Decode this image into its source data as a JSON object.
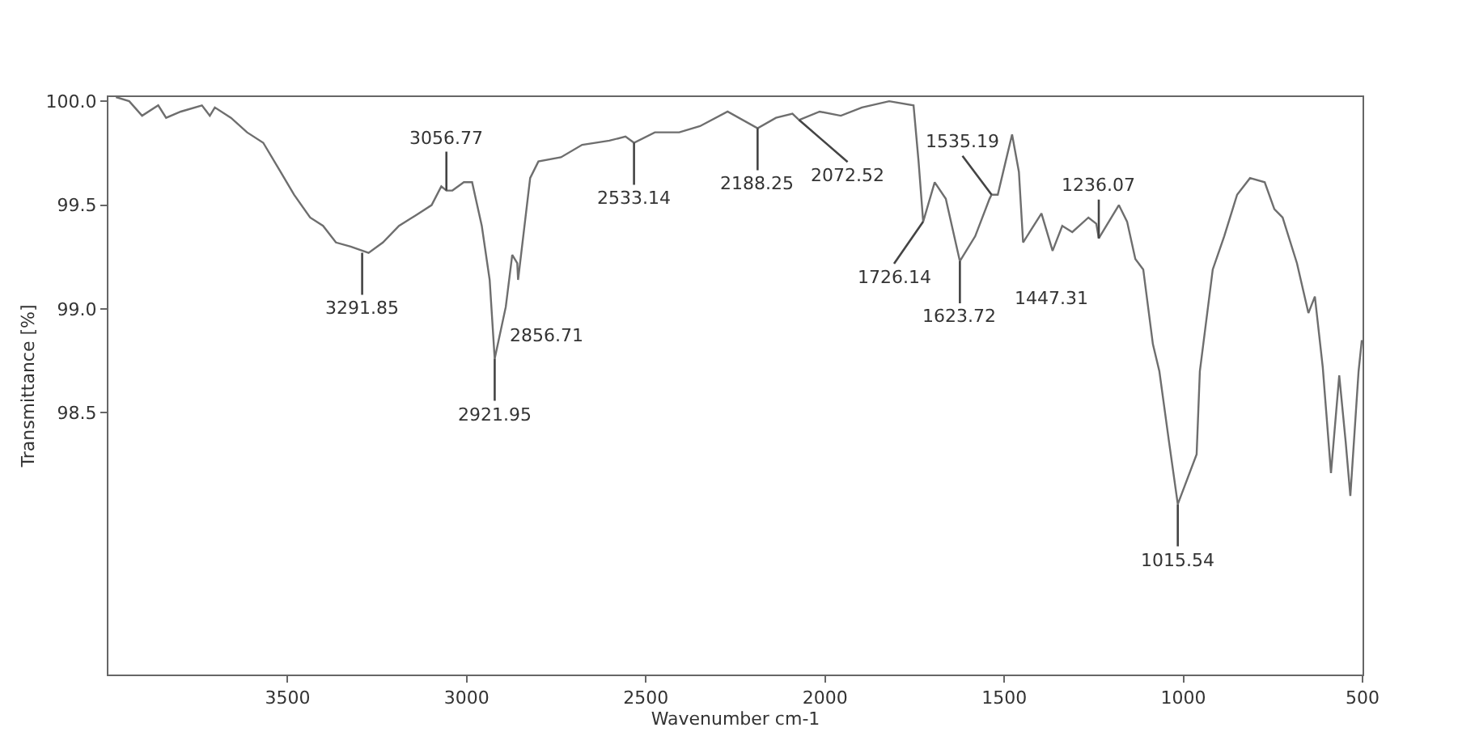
{
  "chart_data": {
    "type": "line",
    "xlabel": "Wavenumber cm-1",
    "ylabel": "Transmittance [%]",
    "xlim": [
      4000,
      500
    ],
    "ylim": [
      97.24,
      100.02
    ],
    "xticks": [
      3500,
      3000,
      2500,
      2000,
      1500,
      1000,
      500
    ],
    "yticks": [
      {
        "value": 100,
        "label": "100.0"
      },
      {
        "value": 99.5,
        "label": "99.5"
      },
      {
        "value": 99,
        "label": "99.0"
      },
      {
        "value": 98.5,
        "label": "98.5"
      }
    ],
    "grid": false,
    "marker": "none",
    "line_style": "solid",
    "series": [
      {
        "color": "#6e6e6e",
        "x": [
          3979,
          3942,
          3906,
          3861,
          3839,
          3798,
          3739,
          3717,
          3703,
          3658,
          3613,
          3568,
          3523,
          3482,
          3437,
          3401,
          3365,
          3324,
          3274,
          3234,
          3189,
          3143,
          3098,
          3071,
          3056.77,
          3040,
          3008,
          2985,
          2958,
          2936,
          2921.95,
          2891,
          2873,
          2859,
          2856.71,
          2823,
          2800,
          2737,
          2678,
          2602,
          2557,
          2533.14,
          2475,
          2407,
          2349,
          2272,
          2188.25,
          2137,
          2091,
          2072.52,
          2015,
          1956,
          1897,
          1821,
          1753,
          1739,
          1726.14,
          1694,
          1663,
          1623.72,
          1581,
          1541,
          1535.19,
          1518,
          1496,
          1478,
          1459,
          1447.31,
          1396,
          1365,
          1338,
          1310,
          1265,
          1243,
          1236.07,
          1180,
          1157,
          1134,
          1112,
          1085,
          1067,
          1040,
          1015.54,
          963,
          954,
          918,
          886,
          850,
          814,
          773,
          746,
          723,
          683,
          651,
          633,
          611,
          588,
          565,
          547,
          534,
          511,
          502
        ],
        "values": [
          100.02,
          100.0,
          99.93,
          99.98,
          99.92,
          99.95,
          99.98,
          99.93,
          99.97,
          99.92,
          99.85,
          99.8,
          99.67,
          99.55,
          99.44,
          99.4,
          99.32,
          99.3,
          99.27,
          99.32,
          99.4,
          99.45,
          99.5,
          99.59,
          99.57,
          99.57,
          99.61,
          99.61,
          99.4,
          99.14,
          98.76,
          99.01,
          99.26,
          99.22,
          99.14,
          99.63,
          99.71,
          99.73,
          99.79,
          99.81,
          99.83,
          99.8,
          99.85,
          99.85,
          99.88,
          99.95,
          99.87,
          99.92,
          99.94,
          99.91,
          99.95,
          99.93,
          99.97,
          100.0,
          99.98,
          99.71,
          99.42,
          99.61,
          99.53,
          99.23,
          99.35,
          99.53,
          99.55,
          99.55,
          99.71,
          99.84,
          99.66,
          99.32,
          99.46,
          99.28,
          99.4,
          99.37,
          99.44,
          99.41,
          99.34,
          99.5,
          99.42,
          99.24,
          99.19,
          98.83,
          98.7,
          98.36,
          98.06,
          98.3,
          98.7,
          99.19,
          99.35,
          99.55,
          99.63,
          99.61,
          99.48,
          99.44,
          99.22,
          98.98,
          99.06,
          98.72,
          98.21,
          98.68,
          98.36,
          98.1,
          98.7,
          98.85
        ]
      }
    ],
    "annotations": [
      {
        "text": "3291.85",
        "x": 3291.85,
        "y": 99.27
      },
      {
        "text": "3056.77",
        "x": 3056.77,
        "y": 99.57
      },
      {
        "text": "2921.95",
        "x": 2921.95,
        "y": 98.76
      },
      {
        "text": "2856.71",
        "x": 2856.71,
        "y": 99.14
      },
      {
        "text": "2533.14",
        "x": 2533.14,
        "y": 99.8
      },
      {
        "text": "2188.25",
        "x": 2188.25,
        "y": 99.87
      },
      {
        "text": "2072.52",
        "x": 2072.52,
        "y": 99.91
      },
      {
        "text": "1726.14",
        "x": 1726.14,
        "y": 99.42
      },
      {
        "text": "1623.72",
        "x": 1623.72,
        "y": 99.23
      },
      {
        "text": "1535.19",
        "x": 1535.19,
        "y": 99.55
      },
      {
        "text": "1447.31",
        "x": 1447.31,
        "y": 99.32
      },
      {
        "text": "1236.07",
        "x": 1236.07,
        "y": 99.34
      },
      {
        "text": "1015.54",
        "x": 1015.54,
        "y": 98.06
      }
    ]
  }
}
